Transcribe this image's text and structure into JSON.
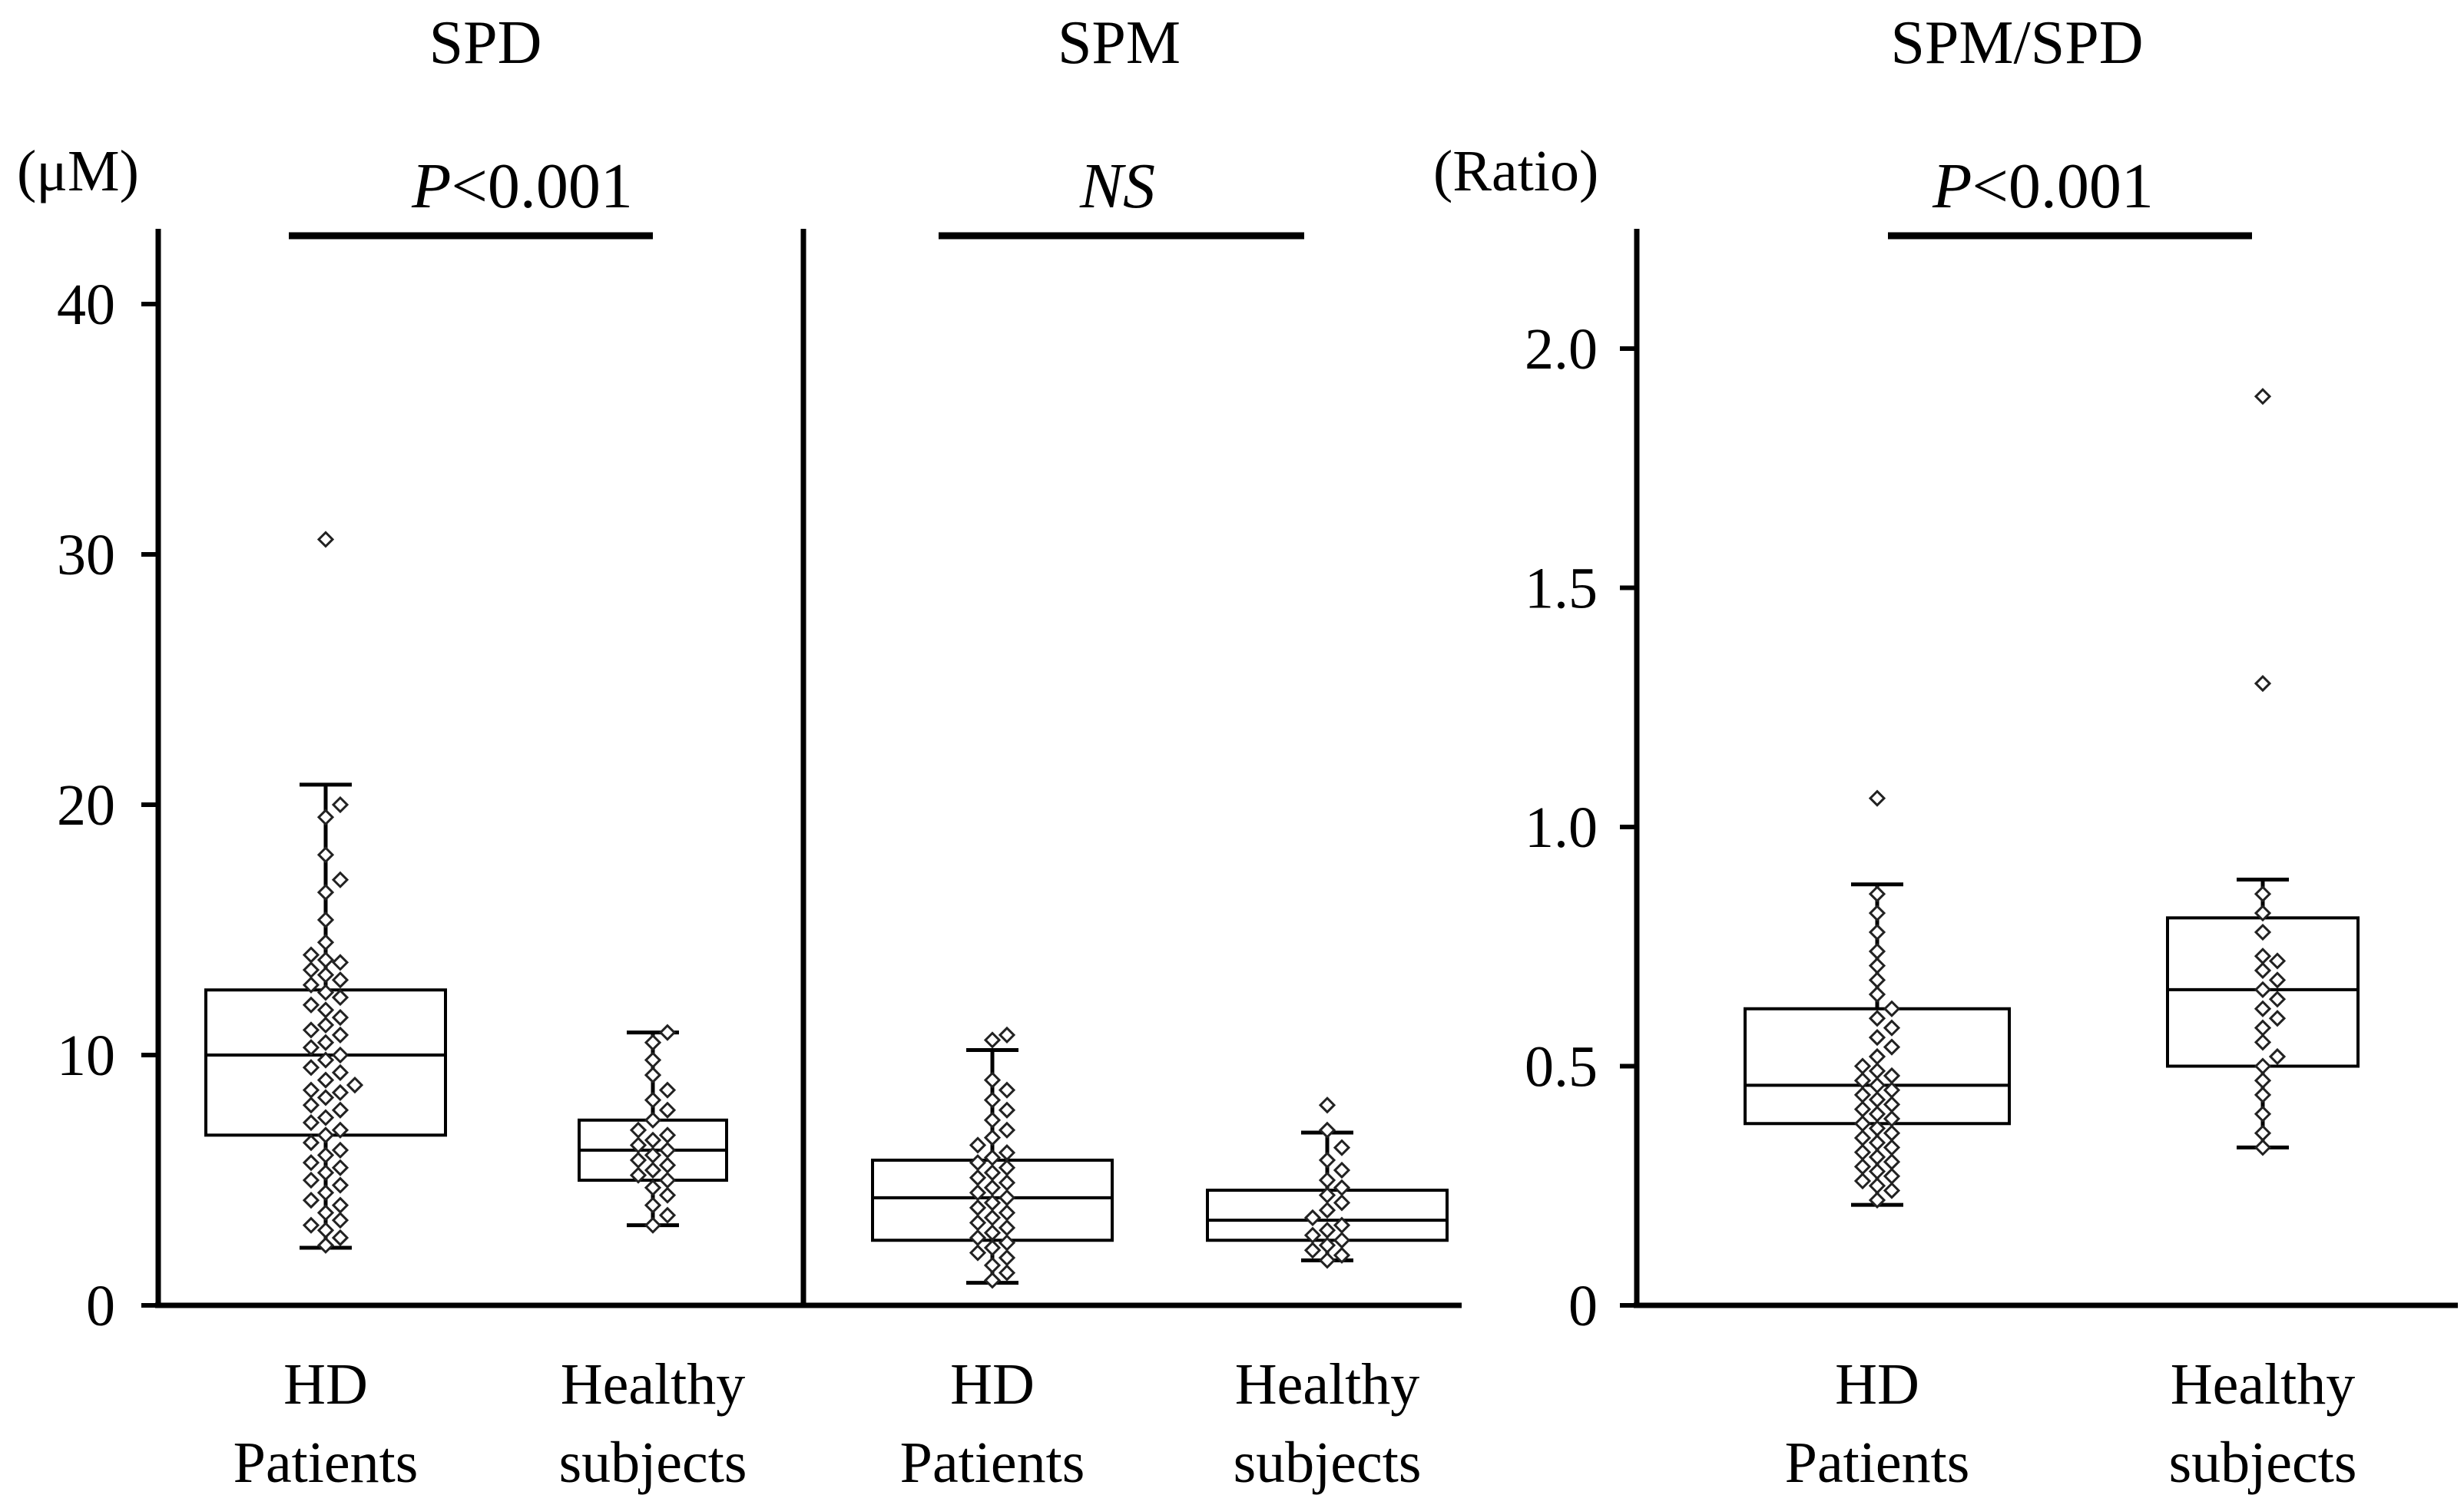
{
  "chart_data": [
    {
      "type": "box",
      "title": "SPD",
      "unit_label": "(μM)",
      "significance": {
        "p_prefix": "P",
        "text": "<0.001"
      },
      "ylim": [
        0,
        43
      ],
      "yticks": [
        0,
        10,
        20,
        30,
        40
      ],
      "ytick_labels": [
        "0",
        "10",
        "20",
        "30",
        "40"
      ],
      "groups": [
        {
          "name_line1": "HD",
          "name_line2": "Patients",
          "whisker_low": 2.3,
          "q1": 6.8,
          "median": 10.0,
          "q3": 12.6,
          "whisker_high": 20.8,
          "points": [
            30.6,
            20.0,
            19.5,
            18.0,
            17.0,
            16.5,
            15.4,
            14.5,
            14.0,
            13.8,
            13.7,
            13.4,
            13.2,
            13.0,
            12.8,
            12.5,
            12.3,
            12.0,
            11.8,
            11.5,
            11.2,
            11.0,
            10.8,
            10.5,
            10.3,
            10.0,
            9.8,
            9.5,
            9.3,
            9.0,
            8.8,
            8.6,
            8.5,
            8.3,
            8.0,
            7.8,
            7.5,
            7.3,
            7.0,
            6.8,
            6.5,
            6.2,
            6.0,
            5.7,
            5.5,
            5.3,
            5.0,
            4.8,
            4.5,
            4.2,
            4.0,
            3.7,
            3.4,
            3.2,
            3.0,
            2.7,
            2.4
          ]
        },
        {
          "name_line1": "Healthy",
          "name_line2": "subjects",
          "whisker_low": 3.2,
          "q1": 5.0,
          "median": 6.2,
          "q3": 7.4,
          "whisker_high": 10.9,
          "points": [
            10.9,
            10.5,
            9.8,
            9.2,
            8.6,
            8.2,
            7.8,
            7.4,
            7.0,
            6.8,
            6.6,
            6.4,
            6.2,
            6.0,
            5.8,
            5.6,
            5.4,
            5.2,
            5.0,
            4.7,
            4.4,
            4.0,
            3.6,
            3.2
          ]
        }
      ]
    },
    {
      "type": "box",
      "title": "SPM",
      "significance": {
        "p_prefix": "",
        "text": "NS"
      },
      "ylim": [
        0,
        43
      ],
      "groups": [
        {
          "name_line1": "HD",
          "name_line2": "Patients",
          "whisker_low": 0.9,
          "q1": 2.6,
          "median": 4.3,
          "q3": 5.8,
          "whisker_high": 10.2,
          "points": [
            10.8,
            10.6,
            9.0,
            8.6,
            8.2,
            7.8,
            7.4,
            7.0,
            6.7,
            6.4,
            6.1,
            5.9,
            5.7,
            5.5,
            5.3,
            5.1,
            4.9,
            4.7,
            4.5,
            4.3,
            4.1,
            3.9,
            3.7,
            3.5,
            3.3,
            3.1,
            2.9,
            2.7,
            2.5,
            2.3,
            2.1,
            1.9,
            1.6,
            1.3,
            1.0
          ]
        },
        {
          "name_line1": "Healthy",
          "name_line2": "subjects",
          "whisker_low": 1.8,
          "q1": 2.6,
          "median": 3.4,
          "q3": 4.6,
          "whisker_high": 6.9,
          "points": [
            8.0,
            7.0,
            6.3,
            5.8,
            5.4,
            5.0,
            4.7,
            4.4,
            4.1,
            3.8,
            3.5,
            3.2,
            3.0,
            2.8,
            2.6,
            2.4,
            2.2,
            2.0,
            1.8
          ]
        }
      ]
    },
    {
      "type": "box",
      "title": "SPM/SPD",
      "unit_label": "(Ratio)",
      "significance": {
        "p_prefix": "P",
        "text": "<0.001"
      },
      "ylim": [
        0,
        2.25
      ],
      "yticks": [
        0,
        0.5,
        1.0,
        1.5,
        2.0
      ],
      "ytick_labels": [
        "0",
        "0.5",
        "1.0",
        "1.5",
        "2.0"
      ],
      "groups": [
        {
          "name_line1": "HD",
          "name_line2": "Patients",
          "whisker_low": 0.21,
          "q1": 0.38,
          "median": 0.46,
          "q3": 0.62,
          "whisker_high": 0.88,
          "points": [
            1.06,
            0.86,
            0.82,
            0.78,
            0.74,
            0.71,
            0.68,
            0.65,
            0.62,
            0.6,
            0.58,
            0.56,
            0.54,
            0.52,
            0.5,
            0.49,
            0.48,
            0.47,
            0.46,
            0.45,
            0.44,
            0.43,
            0.42,
            0.41,
            0.4,
            0.39,
            0.38,
            0.37,
            0.36,
            0.35,
            0.34,
            0.33,
            0.32,
            0.31,
            0.3,
            0.29,
            0.28,
            0.27,
            0.26,
            0.25,
            0.24,
            0.22
          ]
        },
        {
          "name_line1": "Healthy",
          "name_line2": "subjects",
          "whisker_low": 0.33,
          "q1": 0.5,
          "median": 0.66,
          "q3": 0.81,
          "whisker_high": 0.89,
          "points": [
            1.9,
            1.3,
            0.86,
            0.82,
            0.78,
            0.73,
            0.72,
            0.7,
            0.68,
            0.66,
            0.64,
            0.62,
            0.6,
            0.58,
            0.55,
            0.52,
            0.5,
            0.47,
            0.44,
            0.4,
            0.36,
            0.33
          ]
        }
      ]
    }
  ]
}
